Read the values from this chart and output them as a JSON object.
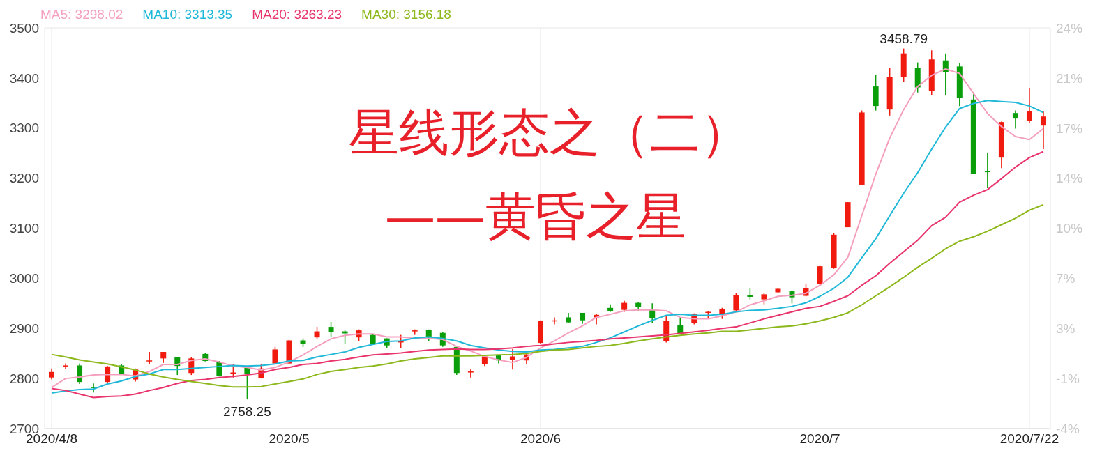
{
  "chart_data": {
    "type": "candlestick",
    "title": "星线形态之（二）",
    "subtitle": "——黄昏之星",
    "categories": [
      "2020/4/8",
      null,
      null,
      null,
      null,
      null,
      null,
      null,
      null,
      null,
      null,
      null,
      null,
      null,
      null,
      null,
      null,
      "2020/5",
      null,
      null,
      null,
      null,
      null,
      null,
      null,
      null,
      null,
      null,
      null,
      null,
      null,
      null,
      null,
      null,
      null,
      "2020/6",
      null,
      null,
      null,
      null,
      null,
      null,
      null,
      null,
      null,
      null,
      null,
      null,
      null,
      null,
      null,
      null,
      null,
      null,
      null,
      "2020/7",
      null,
      null,
      null,
      null,
      null,
      null,
      null,
      null,
      null,
      null,
      null,
      null,
      null,
      null,
      "2020/7/22",
      null
    ],
    "ohlc": [
      [
        2802,
        2820,
        2798,
        2813
      ],
      [
        2825,
        2830,
        2819,
        2826
      ],
      [
        2826,
        2830,
        2789,
        2793
      ],
      [
        2783,
        2790,
        2772,
        2782
      ],
      [
        2793,
        2825,
        2790,
        2824
      ],
      [
        2826,
        2828,
        2808,
        2809
      ],
      [
        2798,
        2820,
        2794,
        2818
      ],
      [
        2835,
        2853,
        2828,
        2836
      ],
      [
        2840,
        2853,
        2831,
        2853
      ],
      [
        2842,
        2843,
        2807,
        2825
      ],
      [
        2811,
        2842,
        2807,
        2840
      ],
      [
        2849,
        2851,
        2834,
        2835
      ],
      [
        2833,
        2835,
        2804,
        2805
      ],
      [
        2811,
        2829,
        2802,
        2812
      ],
      [
        2822,
        2824,
        2758.25,
        2809
      ],
      [
        2801,
        2829,
        2800,
        2820
      ],
      [
        2830,
        2863,
        2830,
        2858
      ],
      [
        2830,
        2877,
        2828,
        2876
      ],
      [
        2876,
        2880,
        2863,
        2869
      ],
      [
        2882,
        2903,
        2878,
        2894
      ],
      [
        2903,
        2913,
        2882,
        2893
      ],
      [
        2894,
        2896,
        2869,
        2890
      ],
      [
        2882,
        2898,
        2874,
        2896
      ],
      [
        2887,
        2889,
        2868,
        2869
      ],
      [
        2880,
        2880,
        2861,
        2866
      ],
      [
        2873,
        2887,
        2861,
        2874
      ],
      [
        2895,
        2898,
        2887,
        2896
      ],
      [
        2897,
        2898,
        2875,
        2883
      ],
      [
        2891,
        2893,
        2863,
        2866
      ],
      [
        2863,
        2864,
        2807,
        2811
      ],
      [
        2813,
        2818,
        2802,
        2814
      ],
      [
        2828,
        2846,
        2825,
        2844
      ],
      [
        2846,
        2847,
        2830,
        2836
      ],
      [
        2837,
        2859,
        2818,
        2844
      ],
      [
        2836,
        2855,
        2828,
        2848
      ],
      [
        2871,
        2916,
        2869,
        2915
      ],
      [
        2914,
        2922,
        2908,
        2916
      ],
      [
        2922,
        2931,
        2910,
        2912
      ],
      [
        2931,
        2931,
        2909,
        2916
      ],
      [
        2922,
        2929,
        2908,
        2927
      ],
      [
        2941,
        2948,
        2933,
        2935
      ],
      [
        2937,
        2955,
        2933,
        2951
      ],
      [
        2951,
        2953,
        2935,
        2943
      ],
      [
        2939,
        2950,
        2911,
        2920
      ],
      [
        2874,
        2925,
        2872,
        2915
      ],
      [
        2907,
        2920,
        2889,
        2890
      ],
      [
        2911,
        2930,
        2908,
        2928
      ],
      [
        2932,
        2935,
        2919,
        2933
      ],
      [
        2928,
        2941,
        2919,
        2939
      ],
      [
        2936,
        2970,
        2933,
        2966
      ],
      [
        2966,
        2981,
        2958,
        2963
      ],
      [
        2958,
        2970,
        2948,
        2968
      ],
      [
        2972,
        2981,
        2970,
        2979
      ],
      [
        2974,
        2976,
        2950,
        2962
      ],
      [
        2965,
        2989,
        2964,
        2981
      ],
      [
        2989,
        3025,
        2986,
        3024
      ],
      [
        3020,
        3091,
        3019,
        3087
      ],
      [
        3102,
        3152,
        3102,
        3152
      ],
      [
        3187,
        3335,
        3187,
        3331
      ],
      [
        3383,
        3406,
        3335,
        3344
      ],
      [
        3337,
        3420,
        3325,
        3402
      ],
      [
        3402,
        3458.79,
        3392,
        3449
      ],
      [
        3420,
        3431,
        3371,
        3381
      ],
      [
        3374,
        3455,
        3365,
        3437
      ],
      [
        3435,
        3449,
        3366,
        3412
      ],
      [
        3423,
        3430,
        3344,
        3360
      ],
      [
        3357,
        3371,
        3208,
        3208
      ],
      [
        3214,
        3251,
        3180,
        3213
      ],
      [
        3241,
        3313,
        3220,
        3312
      ],
      [
        3330,
        3335,
        3299,
        3319
      ],
      [
        3315,
        3380,
        3310,
        3333
      ],
      [
        3305,
        3334,
        3258,
        3323
      ]
    ],
    "colors": [
      "#f01b0e",
      "#f01b0e",
      "#0a9f0a",
      "#0a9f0a",
      "#f01b0e",
      "#0a9f0a",
      "#f01b0e",
      "#f01b0e",
      "#f01b0e",
      "#0a9f0a",
      "#f01b0e",
      "#0a9f0a",
      "#0a9f0a",
      "#f01b0e",
      "#0a9f0a",
      "#f01b0e",
      "#f01b0e",
      "#f01b0e",
      "#0a9f0a",
      "#f01b0e",
      "#0a9f0a",
      "#0a9f0a",
      "#f01b0e",
      "#0a9f0a",
      "#0a9f0a",
      "#f01b0e",
      "#f01b0e",
      "#0a9f0a",
      "#0a9f0a",
      "#0a9f0a",
      "#f01b0e",
      "#f01b0e",
      "#0a9f0a",
      "#f01b0e",
      "#f01b0e",
      "#f01b0e",
      "#f01b0e",
      "#0a9f0a",
      "#0a9f0a",
      "#f01b0e",
      "#0a9f0a",
      "#f01b0e",
      "#0a9f0a",
      "#0a9f0a",
      "#f01b0e",
      "#0a9f0a",
      "#f01b0e",
      "#f01b0e",
      "#f01b0e",
      "#f01b0e",
      "#0a9f0a",
      "#f01b0e",
      "#f01b0e",
      "#0a9f0a",
      "#f01b0e",
      "#f01b0e",
      "#f01b0e",
      "#f01b0e",
      "#f01b0e",
      "#0a9f0a",
      "#f01b0e",
      "#f01b0e",
      "#0a9f0a",
      "#f01b0e",
      "#0a9f0a",
      "#0a9f0a",
      "#0a9f0a",
      "#0a9f0a",
      "#f01b0e",
      "#0a9f0a",
      "#f01b0e",
      "#f01b0e"
    ],
    "series": [
      {
        "type": "line",
        "name": "MA5: 3298.02",
        "color": "#f59fbf",
        "values": [
          2782,
          2800,
          2803,
          2807,
          2808,
          2808,
          2805,
          2814,
          2828,
          2828,
          2836,
          2839,
          2833,
          2825,
          2822,
          2817,
          2822,
          2833,
          2847,
          2864,
          2879,
          2886,
          2889,
          2889,
          2883,
          2883,
          2880,
          2880,
          2878,
          2864,
          2855,
          2844,
          2837,
          2832,
          2842,
          2861,
          2875,
          2891,
          2905,
          2922,
          2928,
          2935,
          2937,
          2937,
          2935,
          2922,
          2919,
          2919,
          2925,
          2933,
          2947,
          2955,
          2964,
          2966,
          2970,
          2986,
          3007,
          3042,
          3125,
          3208,
          3280,
          3337,
          3383,
          3405,
          3418,
          3409,
          3369,
          3329,
          3303,
          3283,
          3277,
          3299
        ]
      },
      {
        "type": "line",
        "name": "MA10: 3313.35",
        "color": "#1fb8d8",
        "values": [
          2771,
          2775,
          2778,
          2779,
          2789,
          2795,
          2804,
          2809,
          2818,
          2818,
          2820,
          2822,
          2824,
          2826,
          2825,
          2826,
          2829,
          2835,
          2836,
          2843,
          2848,
          2853,
          2862,
          2868,
          2874,
          2875,
          2881,
          2883,
          2880,
          2875,
          2866,
          2861,
          2857,
          2854,
          2853,
          2857,
          2858,
          2861,
          2864,
          2872,
          2881,
          2893,
          2905,
          2916,
          2926,
          2928,
          2926,
          2926,
          2928,
          2933,
          2936,
          2937,
          2940,
          2944,
          2951,
          2964,
          2980,
          3002,
          3041,
          3079,
          3125,
          3170,
          3211,
          3258,
          3302,
          3339,
          3349,
          3355,
          3353,
          3351,
          3344,
          3331
        ]
      },
      {
        "type": "line",
        "name": "MA20: 3263.23",
        "color": "#e8336b",
        "values": [
          2780,
          2776,
          2769,
          2762,
          2764,
          2765,
          2769,
          2776,
          2782,
          2790,
          2796,
          2798,
          2802,
          2804,
          2807,
          2811,
          2818,
          2822,
          2828,
          2830,
          2835,
          2838,
          2843,
          2847,
          2849,
          2851,
          2854,
          2857,
          2858,
          2859,
          2858,
          2858,
          2859,
          2861,
          2864,
          2866,
          2869,
          2872,
          2874,
          2876,
          2879,
          2881,
          2883,
          2885,
          2887,
          2890,
          2893,
          2896,
          2900,
          2903,
          2911,
          2919,
          2926,
          2933,
          2940,
          2944,
          2954,
          2965,
          2986,
          3005,
          3030,
          3053,
          3076,
          3105,
          3122,
          3152,
          3166,
          3177,
          3199,
          3222,
          3241,
          3253
        ]
      },
      {
        "type": "line",
        "name": "MA30: 3156.18",
        "color": "#8cb81b",
        "values": [
          2848,
          2843,
          2837,
          2833,
          2829,
          2823,
          2817,
          2809,
          2803,
          2798,
          2794,
          2790,
          2786,
          2783,
          2783,
          2784,
          2789,
          2794,
          2799,
          2808,
          2814,
          2818,
          2822,
          2825,
          2829,
          2835,
          2839,
          2842,
          2845,
          2845,
          2845,
          2846,
          2847,
          2848,
          2850,
          2854,
          2857,
          2858,
          2861,
          2864,
          2866,
          2870,
          2875,
          2879,
          2883,
          2886,
          2889,
          2891,
          2894,
          2894,
          2897,
          2900,
          2903,
          2905,
          2909,
          2915,
          2922,
          2931,
          2947,
          2965,
          2983,
          3002,
          3022,
          3040,
          3059,
          3074,
          3083,
          3094,
          3107,
          3120,
          3136,
          3147
        ]
      }
    ],
    "ylim": [
      2700,
      3500
    ],
    "yticks": [
      2700,
      2800,
      2900,
      3000,
      3100,
      3200,
      3300,
      3400,
      3500
    ],
    "y2lim": [
      -4.085,
      24.334
    ],
    "y2ticks": [
      {
        "value": -4.085,
        "label": "-4%"
      },
      {
        "value": -0.533,
        "label": "-1%"
      },
      {
        "value": 3.02,
        "label": "3%"
      },
      {
        "value": 6.572,
        "label": "7%"
      },
      {
        "value": 10.124,
        "label": "10%"
      },
      {
        "value": 13.677,
        "label": "14%"
      },
      {
        "value": 17.229,
        "label": "17%"
      },
      {
        "value": 20.782,
        "label": "21%"
      },
      {
        "value": 24.334,
        "label": "24%"
      }
    ],
    "annotations": [
      {
        "text": "3458.79",
        "y": 3458.79
      },
      {
        "text": "2758.25",
        "y": 2758.25
      }
    ],
    "grid": true,
    "legend": "top left"
  }
}
